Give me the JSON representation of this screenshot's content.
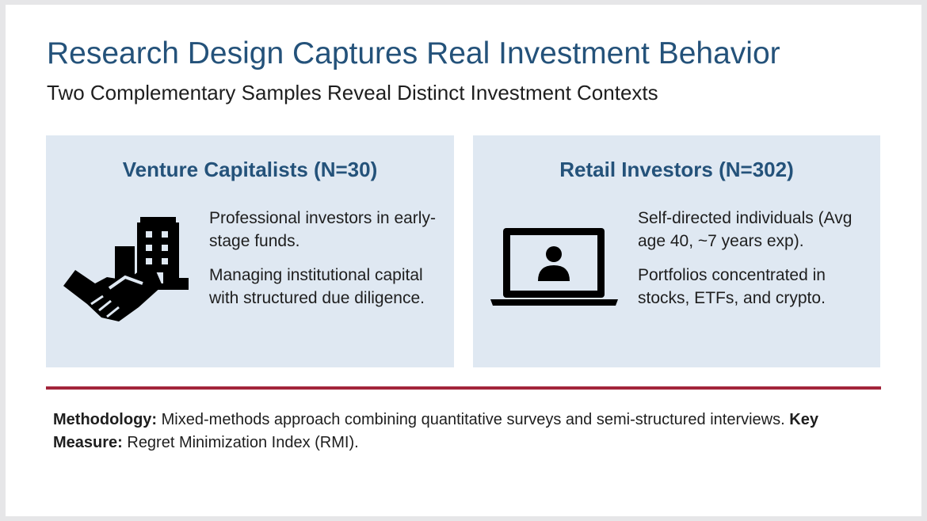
{
  "title": "Research Design Captures Real Investment Behavior",
  "subtitle": "Two Complementary Samples Reveal Distinct Investment Contexts",
  "cards": [
    {
      "heading": "Venture Capitalists (N=30)",
      "icon": "handshake-building-icon",
      "paragraphs": [
        "Professional investors in early-stage funds.",
        "Managing institutional capital with structured due diligence."
      ]
    },
    {
      "heading": "Retail Investors (N=302)",
      "icon": "laptop-user-icon",
      "paragraphs": [
        "Self-directed individuals (Avg age 40, ~7 years exp).",
        "Portfolios concentrated in stocks, ETFs, and crypto."
      ]
    }
  ],
  "methodology": {
    "label1": "Methodology:",
    "text1": " Mixed-methods approach combining quantitative surveys and semi-structured interviews. ",
    "label2": "Key Measure:",
    "text2": " Regret Minimization Index (RMI)."
  },
  "colors": {
    "title": "#24527a",
    "card_bg": "#dfe8f2",
    "accent_rule": "#a3253b"
  }
}
